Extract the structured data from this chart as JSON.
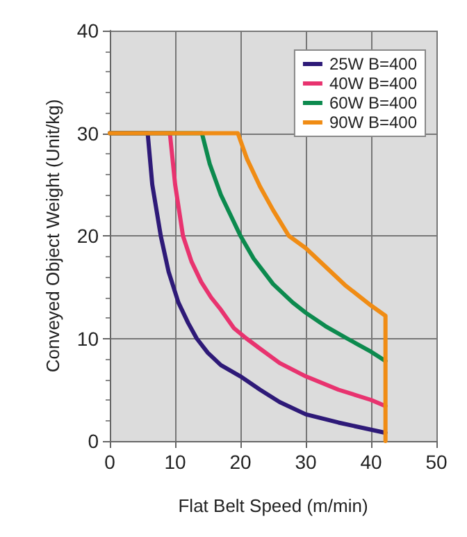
{
  "chart_data": {
    "type": "line",
    "xlabel": "Flat Belt Speed (m/min)",
    "ylabel": "Conveyed Object Weight (Unit/kg)",
    "xlim": [
      0,
      50
    ],
    "xticks": [
      0,
      10,
      20,
      30,
      40,
      50
    ],
    "ylim": [
      0,
      40
    ],
    "yticks": [
      0,
      10,
      20,
      30,
      40
    ],
    "grid": true,
    "legend": "top right",
    "marker": "none",
    "line_style": "solid",
    "series": [
      {
        "name": "25W B=400",
        "color": "#2e1a78",
        "x": [
          0,
          5.8,
          6.5,
          7.8,
          9,
          10.5,
          12,
          13.3,
          15,
          17,
          20,
          23,
          26,
          30,
          35,
          40,
          42.2
        ],
        "values": [
          30,
          30,
          25,
          20,
          16.5,
          13.5,
          11.5,
          10,
          8.6,
          7.4,
          6.3,
          5,
          3.8,
          2.6,
          1.8,
          1.1,
          0.8
        ]
      },
      {
        "name": "40W B=400",
        "color": "#e8336f",
        "x": [
          0,
          9.2,
          10,
          11.2,
          12.5,
          14,
          15.5,
          17,
          19,
          20.9,
          23,
          26,
          30,
          35,
          40,
          42.2
        ],
        "values": [
          30,
          30,
          25,
          20,
          17.5,
          15.5,
          14,
          12.8,
          11,
          10,
          9,
          7.6,
          6.3,
          5,
          4,
          3.4
        ]
      },
      {
        "name": "60W B=400",
        "color": "#0c8a4e",
        "x": [
          0,
          14.1,
          15.3,
          17,
          18.5,
          20,
          22,
          25,
          28,
          30,
          33,
          36.3,
          40,
          42.2
        ],
        "values": [
          30,
          30,
          27,
          24,
          22,
          20,
          17.8,
          15.3,
          13.5,
          12.5,
          11.2,
          10,
          8.7,
          7.8
        ]
      },
      {
        "name": "90W B=400",
        "color": "#f08c14",
        "x": [
          0,
          19.6,
          21,
          23,
          25,
          27.4,
          30,
          33,
          36,
          40,
          42.2,
          42.2
        ],
        "values": [
          30,
          30,
          27.5,
          24.8,
          22.5,
          20,
          18.8,
          17,
          15.2,
          13.2,
          12.2,
          0
        ]
      }
    ]
  }
}
